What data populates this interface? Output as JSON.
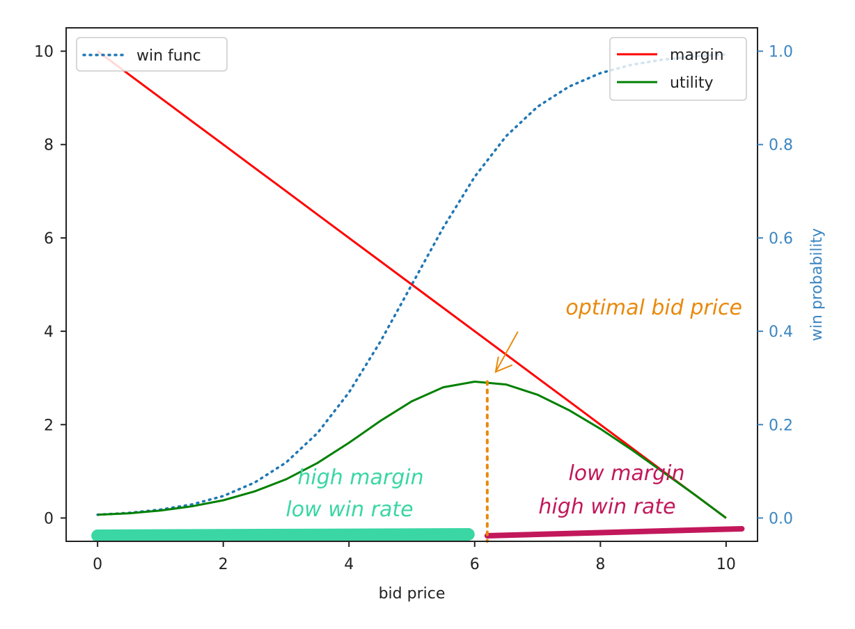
{
  "chart_data": {
    "type": "line",
    "xlabel": "bid price",
    "ylabel": "",
    "ylabel_right": "win probability",
    "xlim": [
      -0.5,
      10.5
    ],
    "ylim": [
      -0.5,
      10.5
    ],
    "ylim_right": [
      -0.05,
      1.05
    ],
    "xticks": [
      0,
      2,
      4,
      6,
      8,
      10
    ],
    "xtick_labels": [
      "0",
      "2",
      "4",
      "6",
      "8",
      "10"
    ],
    "yticks": [
      0,
      2,
      4,
      6,
      8,
      10
    ],
    "ytick_labels": [
      "0",
      "2",
      "4",
      "6",
      "8",
      "10"
    ],
    "yticks_right": [
      0.0,
      0.2,
      0.4,
      0.6,
      0.8,
      1.0
    ],
    "ytick_labels_right": [
      "0.0",
      "0.2",
      "0.4",
      "0.6",
      "0.8",
      "1.0"
    ],
    "grid": false,
    "x": [
      0,
      0.5,
      1,
      1.5,
      2,
      2.5,
      3,
      3.5,
      4,
      4.5,
      5,
      5.5,
      6,
      6.5,
      7,
      7.5,
      8,
      8.5,
      9,
      9.5,
      10
    ],
    "series": [
      {
        "name": "win func",
        "axis": "right",
        "style": "dotted",
        "color": "#1f77b4",
        "values": [
          0.007,
          0.011,
          0.018,
          0.029,
          0.047,
          0.076,
          0.119,
          0.182,
          0.269,
          0.378,
          0.5,
          0.622,
          0.731,
          0.818,
          0.881,
          0.924,
          0.953,
          0.971,
          0.982,
          0.989,
          0.993
        ]
      },
      {
        "name": "margin",
        "axis": "left",
        "style": "solid",
        "color": "#ff0000",
        "values": [
          10,
          9.5,
          9,
          8.5,
          8,
          7.5,
          7,
          6.5,
          6,
          5.5,
          5,
          4.5,
          4,
          3.5,
          3,
          2.5,
          2,
          1.5,
          1,
          0.5,
          0
        ]
      },
      {
        "name": "utility",
        "axis": "left",
        "style": "solid",
        "color": "#008000",
        "values": [
          0.07,
          0.1,
          0.16,
          0.25,
          0.38,
          0.57,
          0.83,
          1.18,
          1.61,
          2.08,
          2.5,
          2.8,
          2.92,
          2.86,
          2.64,
          2.31,
          1.91,
          1.46,
          0.98,
          0.5,
          0.0
        ]
      }
    ],
    "legends": {
      "left": {
        "placement": "top-left",
        "entries": [
          "win func"
        ]
      },
      "right": {
        "placement": "top-right",
        "entries": [
          "margin",
          "utility"
        ]
      }
    },
    "annotations": {
      "optimal_label": "optimal bid price",
      "optimal_x": 6.2,
      "optimal_y": 2.92,
      "left_line1": "high margin",
      "left_line2": "low win rate",
      "right_line1": "low margin",
      "right_line2": "high win rate",
      "left_band": [
        0,
        5.9
      ],
      "right_band": [
        6.2,
        10.25
      ],
      "colors": {
        "orange": "#e8890c",
        "teal": "#3ad6a3",
        "crimson": "#c2185b"
      }
    }
  }
}
